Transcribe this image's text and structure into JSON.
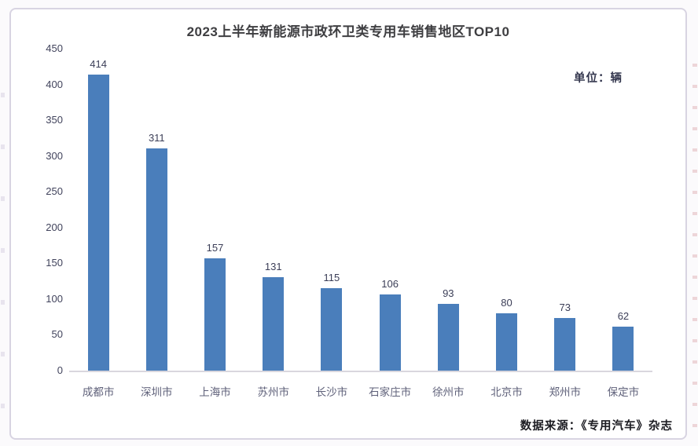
{
  "chart_data": {
    "type": "bar",
    "title": "2023上半年新能源市政环卫类专用车销售地区TOP10",
    "unit_label": "单位：辆",
    "categories": [
      "成都市",
      "深圳市",
      "上海市",
      "苏州市",
      "长沙市",
      "石家庄市",
      "徐州市",
      "北京市",
      "郑州市",
      "保定市"
    ],
    "values": [
      414,
      311,
      157,
      131,
      115,
      106,
      93,
      80,
      73,
      62
    ],
    "ylim": [
      0,
      450
    ],
    "yticks": [
      0,
      50,
      100,
      150,
      200,
      250,
      300,
      350,
      400,
      450
    ],
    "xlabel": "",
    "ylabel": "",
    "grid": false,
    "legend_position": "none",
    "bar_color": "#4a7ebb",
    "source": "数据来源：《专用汽车》杂志"
  }
}
